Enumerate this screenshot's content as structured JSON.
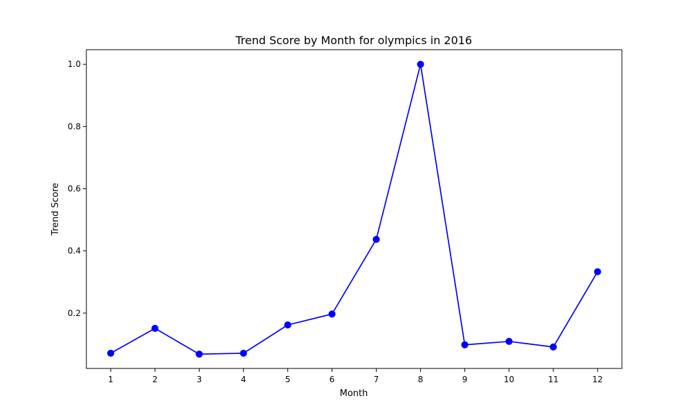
{
  "chart_data": {
    "type": "line",
    "title": "Trend Score by Month for olympics in 2016",
    "xlabel": "Month",
    "ylabel": "Trend Score",
    "x": [
      1,
      2,
      3,
      4,
      5,
      6,
      7,
      8,
      9,
      10,
      11,
      12
    ],
    "x_tick_labels": [
      "1",
      "2",
      "3",
      "4",
      "5",
      "6",
      "7",
      "8",
      "9",
      "10",
      "11",
      "12"
    ],
    "y_ticks": [
      0.2,
      0.4,
      0.6,
      0.8,
      1.0
    ],
    "y_tick_labels": [
      "0.2",
      "0.4",
      "0.6",
      "0.8",
      "1.0"
    ],
    "xlim": [
      0.45,
      12.55
    ],
    "ylim": [
      0.022,
      1.047
    ],
    "grid": false,
    "legend": "none",
    "series": [
      {
        "color": "#0000ff",
        "marker": "circle",
        "values": [
          0.071,
          0.151,
          0.068,
          0.071,
          0.162,
          0.197,
          0.437,
          1.0,
          0.098,
          0.109,
          0.091,
          0.333
        ]
      }
    ]
  }
}
